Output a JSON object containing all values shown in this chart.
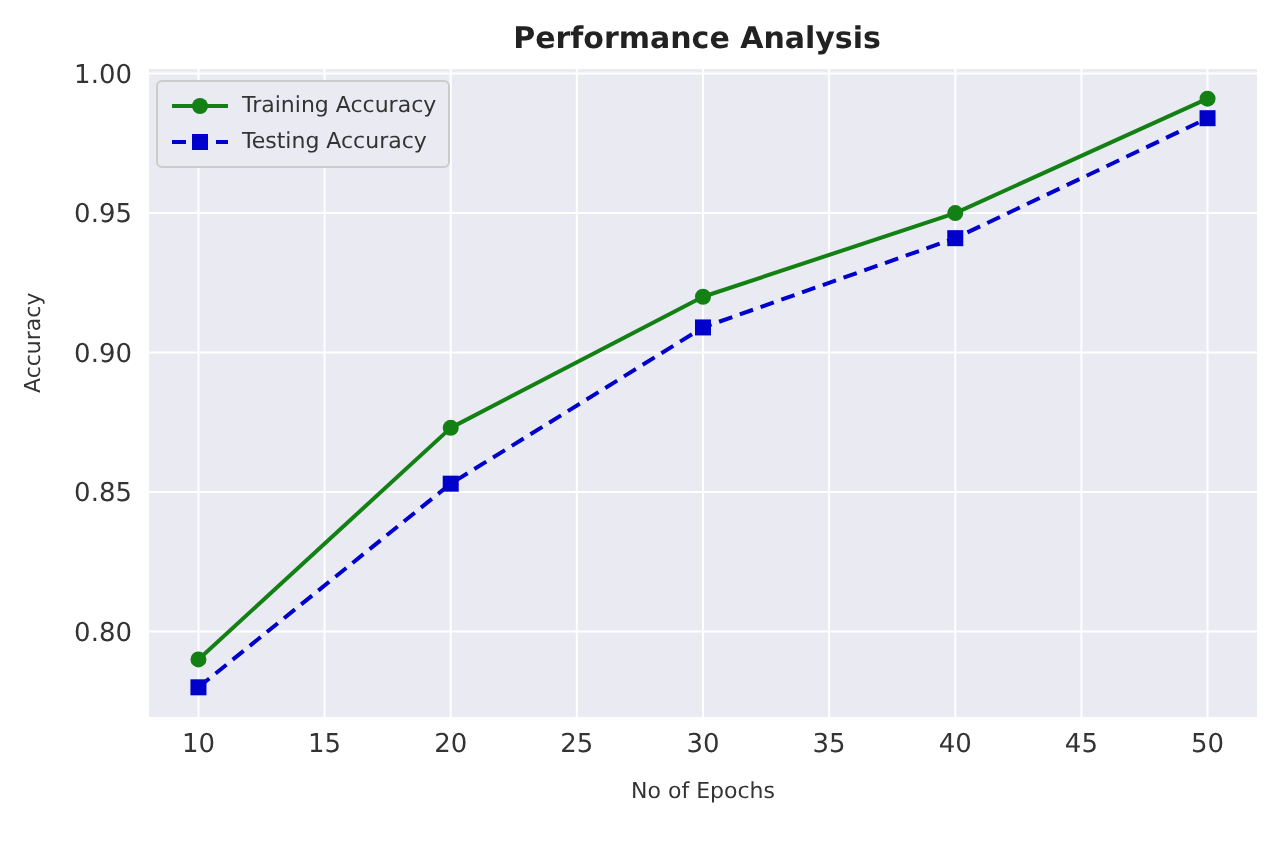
{
  "chart_data": {
    "type": "line",
    "title": "Performance Analysis",
    "xlabel": "No of Epochs",
    "ylabel": "Accuracy",
    "x": [
      10,
      20,
      30,
      40,
      50
    ],
    "series": [
      {
        "name": "Training Accuracy",
        "color": "#138013",
        "values": [
          0.79,
          0.873,
          0.92,
          0.95,
          0.991
        ],
        "marker": "circle",
        "line_style": "solid"
      },
      {
        "name": "Testing Accuracy",
        "color": "#0000cc",
        "values": [
          0.78,
          0.853,
          0.909,
          0.941,
          0.984
        ],
        "marker": "square",
        "line_style": "dashed"
      }
    ],
    "xlim": [
      8,
      52
    ],
    "xticks": [
      10,
      15,
      20,
      25,
      30,
      35,
      40,
      45,
      50
    ],
    "ylim": [
      0.769,
      1.002
    ],
    "yticks": [
      {
        "value": 0.8,
        "label": "0.80"
      },
      0.85,
      {
        "value": 0.9,
        "label": "0.90"
      },
      0.95,
      {
        "value": 1.0,
        "label": "1.00"
      }
    ],
    "grid": true,
    "legend": "top left"
  }
}
